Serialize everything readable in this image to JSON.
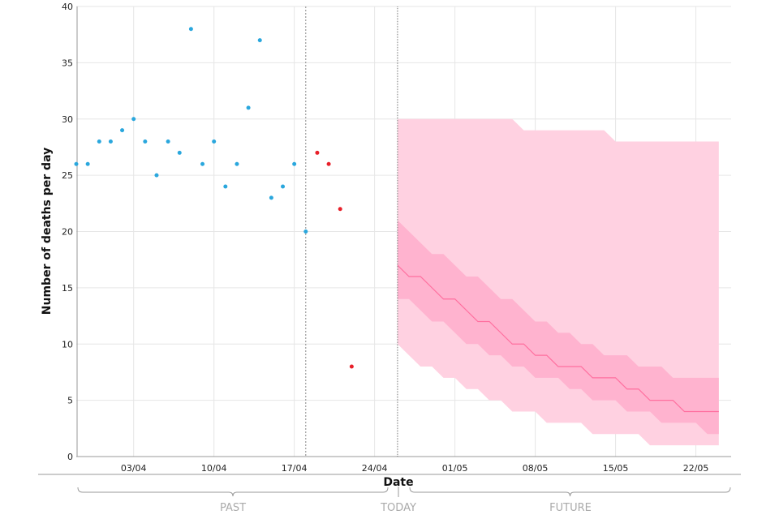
{
  "chart_data": {
    "type": "scatter",
    "xlabel": "Date",
    "ylabel": "Number of deaths per day",
    "ylim": [
      0,
      40
    ],
    "yticks": [
      0,
      5,
      10,
      15,
      20,
      25,
      30,
      35,
      40
    ],
    "xticks": [
      "03/04",
      "10/04",
      "17/04",
      "24/04",
      "01/05",
      "08/05",
      "15/05",
      "22/05"
    ],
    "x_start": "29/03",
    "today": "26/04",
    "cutoff": "18/04",
    "sections": {
      "past": "PAST",
      "today": "TODAY",
      "future": "FUTURE"
    },
    "observed": {
      "color": "#2aa7dd",
      "dates": [
        "29/03",
        "30/03",
        "31/03",
        "01/04",
        "02/04",
        "03/04",
        "04/04",
        "05/04",
        "06/04",
        "07/04",
        "08/04",
        "09/04",
        "10/04",
        "11/04",
        "12/04",
        "13/04",
        "14/04",
        "15/04",
        "16/04",
        "17/04",
        "18/04"
      ],
      "values": [
        26,
        26,
        28,
        28,
        29,
        30,
        28,
        25,
        28,
        27,
        38,
        26,
        28,
        24,
        26,
        31,
        37,
        23,
        24,
        26,
        20
      ]
    },
    "recent": {
      "color": "#e8202a",
      "dates": [
        "19/04",
        "20/04",
        "21/04",
        "22/04"
      ],
      "values": [
        27,
        26,
        22,
        8
      ]
    },
    "forecast": {
      "start": "26/04",
      "outer_band": {
        "color": "#ffd1e1",
        "upper": [
          30,
          30,
          30,
          30,
          30,
          30,
          30,
          30,
          30,
          30,
          30,
          29,
          29,
          29,
          29,
          29,
          29,
          29,
          29,
          28,
          28,
          28,
          28,
          28,
          28,
          28,
          28,
          28,
          28
        ],
        "lower": [
          10,
          9,
          8,
          8,
          7,
          7,
          6,
          6,
          5,
          5,
          4,
          4,
          4,
          3,
          3,
          3,
          3,
          2,
          2,
          2,
          2,
          2,
          1,
          1,
          1,
          1,
          1,
          1,
          1
        ]
      },
      "inner_band": {
        "color": "#ffb3cf",
        "upper": [
          21,
          20,
          19,
          18,
          18,
          17,
          16,
          16,
          15,
          14,
          14,
          13,
          12,
          12,
          11,
          11,
          10,
          10,
          9,
          9,
          9,
          8,
          8,
          8,
          7,
          7,
          7,
          7,
          7
        ],
        "lower": [
          14,
          14,
          13,
          12,
          12,
          11,
          10,
          10,
          9,
          9,
          8,
          8,
          7,
          7,
          7,
          6,
          6,
          5,
          5,
          5,
          4,
          4,
          4,
          3,
          3,
          3,
          3,
          2,
          2
        ]
      },
      "median": {
        "color": "#ff6f9f",
        "values": [
          17,
          16,
          16,
          15,
          14,
          14,
          13,
          12,
          12,
          11,
          10,
          10,
          9,
          9,
          8,
          8,
          8,
          7,
          7,
          7,
          6,
          6,
          5,
          5,
          5,
          4,
          4,
          4,
          4
        ]
      }
    }
  }
}
